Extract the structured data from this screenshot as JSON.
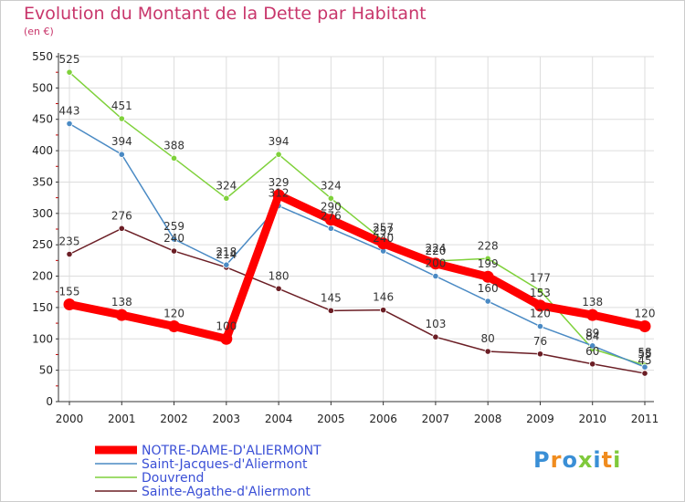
{
  "chart_data": {
    "type": "line",
    "title": "Evolution du Montant de la Dette par Habitant",
    "unit": "(en €)",
    "x": [
      "2000",
      "2001",
      "2002",
      "2003",
      "2004",
      "2005",
      "2006",
      "2007",
      "2008",
      "2009",
      "2010",
      "2011"
    ],
    "ylim": [
      0,
      550
    ],
    "yticks": [
      0,
      50,
      100,
      150,
      200,
      250,
      300,
      350,
      400,
      450,
      500,
      550
    ],
    "grid": true,
    "legend_position": "bottom-left",
    "series": [
      {
        "name": "Sainte-Agathe-d'Aliermont",
        "color": "#6b1e25",
        "values": [
          235,
          276,
          240,
          214,
          180,
          145,
          146,
          103,
          80,
          76,
          60,
          45
        ]
      },
      {
        "name": "Douvrend",
        "color": "#7fd13b",
        "values": [
          525,
          451,
          388,
          324,
          394,
          324,
          257,
          224,
          228,
          177,
          84,
          58
        ]
      },
      {
        "name": "Saint-Jacques-d'Aliermont",
        "color": "#4a8ac4",
        "values": [
          443,
          394,
          259,
          218,
          312,
          276,
          240,
          200,
          160,
          120,
          89,
          55
        ]
      },
      {
        "name": "NOTRE-DAME-D'ALIERMONT",
        "color": "#ff0000",
        "values": [
          155,
          138,
          120,
          100,
          329,
          290,
          252,
          220,
          199,
          153,
          138,
          120
        ]
      }
    ]
  },
  "logo": {
    "text": "Proxiti"
  }
}
